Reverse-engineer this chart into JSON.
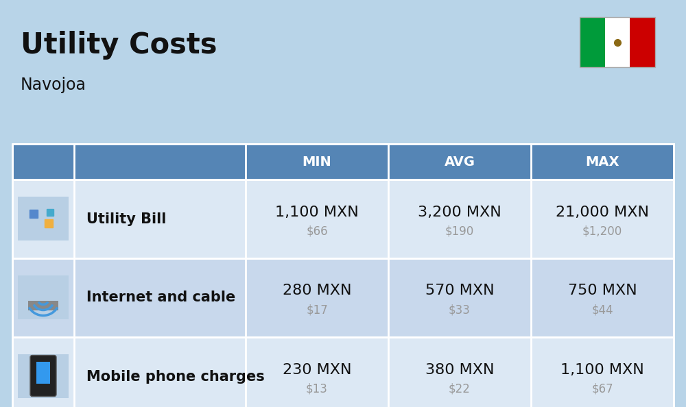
{
  "title": "Utility Costs",
  "subtitle": "Navojoa",
  "background_color": "#b8d4e8",
  "table_header_color": "#5585b5",
  "table_header_text_color": "#ffffff",
  "table_row_colors": [
    "#dce8f4",
    "#c8d8ec"
  ],
  "table_border_color": "#ffffff",
  "rows": [
    {
      "name": "Utility Bill",
      "min_mxn": "1,100 MXN",
      "min_usd": "$66",
      "avg_mxn": "3,200 MXN",
      "avg_usd": "$190",
      "max_mxn": "21,000 MXN",
      "max_usd": "$1,200"
    },
    {
      "name": "Internet and cable",
      "min_mxn": "280 MXN",
      "min_usd": "$17",
      "avg_mxn": "570 MXN",
      "avg_usd": "$33",
      "max_mxn": "750 MXN",
      "max_usd": "$44"
    },
    {
      "name": "Mobile phone charges",
      "min_mxn": "230 MXN",
      "min_usd": "$13",
      "avg_mxn": "380 MXN",
      "avg_usd": "$22",
      "max_mxn": "1,100 MXN",
      "max_usd": "$67"
    }
  ],
  "title_fontsize": 30,
  "subtitle_fontsize": 17,
  "header_fontsize": 14,
  "cell_mxn_fontsize": 16,
  "cell_usd_fontsize": 12,
  "name_fontsize": 15,
  "flag_green": "#009b3a",
  "flag_white": "#ffffff",
  "flag_red": "#cc0000",
  "text_color_dark": "#111111",
  "text_color_sub": "#999999",
  "icon_bg_color": "#b8cfe4"
}
